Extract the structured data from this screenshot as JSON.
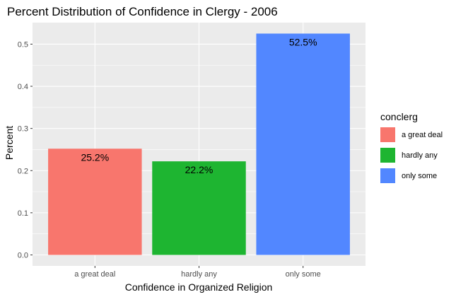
{
  "chart_data": {
    "type": "bar",
    "title": "Percent Distribution of Confidence in Clergy - 2006",
    "xlabel": "Confidence in Organized Religion",
    "ylabel": "Percent",
    "categories": [
      "a great deal",
      "hardly any",
      "only some"
    ],
    "values": [
      0.252,
      0.222,
      0.525
    ],
    "data_labels": [
      "25.2%",
      "22.2%",
      "52.5%"
    ],
    "colors": [
      "#F8766D",
      "#1EB531",
      "#5287FF"
    ],
    "yticks": [
      0.0,
      0.1,
      0.2,
      0.3,
      0.4,
      0.5
    ],
    "ytick_labels": [
      "0.0",
      "0.1",
      "0.2",
      "0.3",
      "0.4",
      "0.5"
    ],
    "ylim": [
      -0.026,
      0.551
    ],
    "grid": true,
    "panel_background": "#EBEBEB",
    "legend": {
      "title": "conclerg",
      "position": "right",
      "entries": [
        "a great deal",
        "hardly any",
        "only some"
      ]
    }
  }
}
